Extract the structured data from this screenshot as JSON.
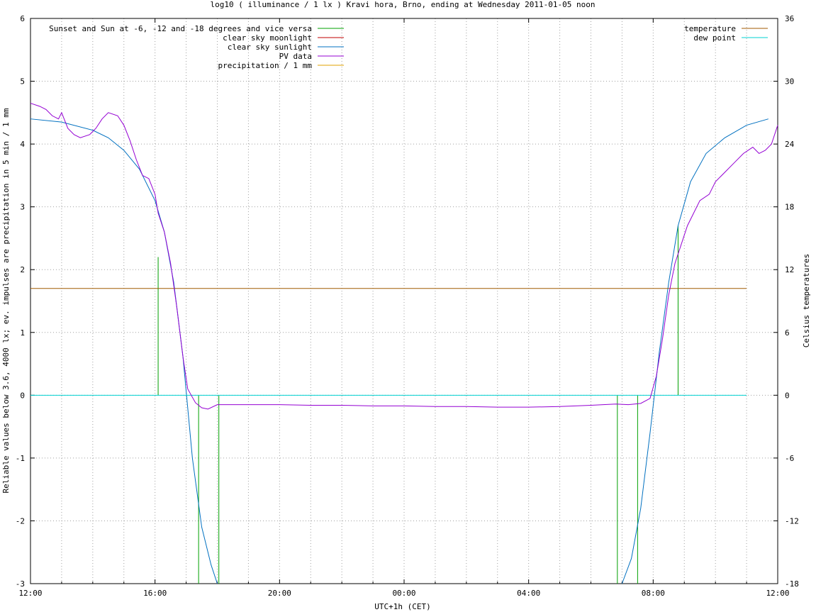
{
  "chart_data": {
    "type": "line",
    "title": "log10 ( illuminance / 1 lx ) Kravi hora, Brno, ending at Wednesday 2011-01-05 noon",
    "xlabel": "UTC+1h (CET)",
    "ylabel": "Reliable values below 3.6, 4000 lx; ev. impulses are precipitation in 5 min / 1 mm",
    "y2label": "Celsius temperatures",
    "xlim": [
      12,
      36
    ],
    "ylim": [
      -3,
      6
    ],
    "y2lim": [
      -18,
      36
    ],
    "x_ticks": [
      {
        "v": 12,
        "label": "12:00"
      },
      {
        "v": 16,
        "label": "16:00"
      },
      {
        "v": 20,
        "label": "20:00"
      },
      {
        "v": 24,
        "label": "00:00"
      },
      {
        "v": 28,
        "label": "04:00"
      },
      {
        "v": 32,
        "label": "08:00"
      },
      {
        "v": 36,
        "label": "12:00"
      }
    ],
    "y_ticks": [
      {
        "v": -3,
        "label": "-3"
      },
      {
        "v": -2,
        "label": "-2"
      },
      {
        "v": -1,
        "label": "-1"
      },
      {
        "v": 0,
        "label": "0"
      },
      {
        "v": 1,
        "label": "1"
      },
      {
        "v": 2,
        "label": "2"
      },
      {
        "v": 3,
        "label": "3"
      },
      {
        "v": 4,
        "label": "4"
      },
      {
        "v": 5,
        "label": "5"
      },
      {
        "v": 6,
        "label": "6"
      }
    ],
    "y2_ticks": [
      {
        "v": -18,
        "label": "-18"
      },
      {
        "v": -12,
        "label": "-12"
      },
      {
        "v": -6,
        "label": "-6"
      },
      {
        "v": 0,
        "label": "0"
      },
      {
        "v": 6,
        "label": "6"
      },
      {
        "v": 12,
        "label": "12"
      },
      {
        "v": 18,
        "label": "18"
      },
      {
        "v": 24,
        "label": "24"
      },
      {
        "v": 30,
        "label": "30"
      },
      {
        "v": 36,
        "label": "36"
      }
    ],
    "grid": true,
    "legend_left": [
      {
        "name": "Sunset and Sun at -6, -12 and -18 degrees and vice versa",
        "color": "#00a000"
      },
      {
        "name": "clear sky moonlight",
        "color": "#c00000"
      },
      {
        "name": "clear sky sunlight",
        "color": "#0070c0"
      },
      {
        "name": "PV data",
        "color": "#9400d3"
      },
      {
        "name": "precipitation / 1 mm",
        "color": "#e0a000"
      }
    ],
    "legend_right": [
      {
        "name": "temperature",
        "color": "#a05a00"
      },
      {
        "name": "dew point",
        "color": "#00d0d0"
      }
    ],
    "sun_event_impulses": [
      {
        "x": 16.1,
        "y": 2.2
      },
      {
        "x": 16.75,
        "y": 0.0
      },
      {
        "x": 17.4,
        "y": -3.0
      },
      {
        "x": 18.05,
        "y": -3.0
      },
      {
        "x": 30.85,
        "y": -3.0
      },
      {
        "x": 31.5,
        "y": -3.0
      },
      {
        "x": 32.15,
        "y": 0.0
      },
      {
        "x": 32.8,
        "y": 2.7
      }
    ],
    "clear_sky_sunlight": [
      [
        12.0,
        4.4
      ],
      [
        13.0,
        4.35
      ],
      [
        14.0,
        4.22
      ],
      [
        14.5,
        4.1
      ],
      [
        15.0,
        3.9
      ],
      [
        15.5,
        3.6
      ],
      [
        16.0,
        3.1
      ],
      [
        16.3,
        2.6
      ],
      [
        16.6,
        1.8
      ],
      [
        16.9,
        0.6
      ],
      [
        17.2,
        -1.0
      ],
      [
        17.5,
        -2.1
      ],
      [
        17.8,
        -2.7
      ],
      [
        18.0,
        -3.0
      ],
      [
        31.0,
        -3.0
      ],
      [
        31.3,
        -2.6
      ],
      [
        31.6,
        -1.8
      ],
      [
        31.9,
        -0.6
      ],
      [
        32.2,
        0.7
      ],
      [
        32.5,
        1.8
      ],
      [
        32.8,
        2.7
      ],
      [
        33.2,
        3.4
      ],
      [
        33.7,
        3.85
      ],
      [
        34.3,
        4.1
      ],
      [
        35.0,
        4.3
      ],
      [
        35.7,
        4.4
      ]
    ],
    "pv_data": [
      [
        12.0,
        4.65
      ],
      [
        12.3,
        4.6
      ],
      [
        12.5,
        4.55
      ],
      [
        12.7,
        4.45
      ],
      [
        12.9,
        4.4
      ],
      [
        13.0,
        4.5
      ],
      [
        13.2,
        4.25
      ],
      [
        13.4,
        4.15
      ],
      [
        13.6,
        4.1
      ],
      [
        13.9,
        4.15
      ],
      [
        14.1,
        4.25
      ],
      [
        14.3,
        4.4
      ],
      [
        14.5,
        4.5
      ],
      [
        14.8,
        4.45
      ],
      [
        15.0,
        4.3
      ],
      [
        15.2,
        4.05
      ],
      [
        15.4,
        3.75
      ],
      [
        15.6,
        3.5
      ],
      [
        15.8,
        3.45
      ],
      [
        16.0,
        3.2
      ],
      [
        16.1,
        2.9
      ],
      [
        16.3,
        2.6
      ],
      [
        16.5,
        2.1
      ],
      [
        16.7,
        1.4
      ],
      [
        16.9,
        0.6
      ],
      [
        17.05,
        0.1
      ],
      [
        17.3,
        -0.12
      ],
      [
        17.5,
        -0.2
      ],
      [
        17.7,
        -0.22
      ],
      [
        18.0,
        -0.15
      ],
      [
        19.0,
        -0.15
      ],
      [
        20.0,
        -0.15
      ],
      [
        21.0,
        -0.16
      ],
      [
        22.0,
        -0.16
      ],
      [
        23.0,
        -0.17
      ],
      [
        24.0,
        -0.17
      ],
      [
        25.0,
        -0.18
      ],
      [
        26.0,
        -0.18
      ],
      [
        27.0,
        -0.19
      ],
      [
        28.0,
        -0.19
      ],
      [
        29.0,
        -0.18
      ],
      [
        30.0,
        -0.16
      ],
      [
        30.8,
        -0.14
      ],
      [
        31.2,
        -0.15
      ],
      [
        31.6,
        -0.13
      ],
      [
        31.9,
        -0.05
      ],
      [
        32.1,
        0.3
      ],
      [
        32.3,
        0.9
      ],
      [
        32.5,
        1.6
      ],
      [
        32.7,
        2.1
      ],
      [
        32.9,
        2.4
      ],
      [
        33.1,
        2.7
      ],
      [
        33.3,
        2.9
      ],
      [
        33.5,
        3.1
      ],
      [
        33.8,
        3.2
      ],
      [
        34.0,
        3.4
      ],
      [
        34.3,
        3.55
      ],
      [
        34.6,
        3.7
      ],
      [
        34.9,
        3.85
      ],
      [
        35.2,
        3.95
      ],
      [
        35.4,
        3.85
      ],
      [
        35.6,
        3.9
      ],
      [
        35.8,
        4.0
      ],
      [
        36.0,
        4.3
      ]
    ],
    "temperature": [
      [
        12.0,
        10.2
      ],
      [
        35.0,
        10.2
      ]
    ],
    "dew_point": [
      [
        12.0,
        0.0
      ],
      [
        35.0,
        0.0
      ]
    ]
  }
}
